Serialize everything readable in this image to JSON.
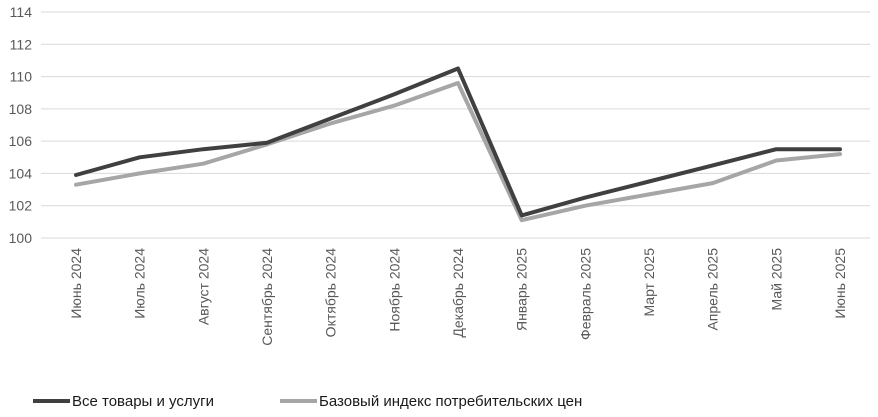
{
  "chart_data": {
    "type": "line",
    "categories": [
      "Июнь 2024",
      "Июль 2024",
      "Август 2024",
      "Сентябрь 2024",
      "Октябрь 2024",
      "Ноябрь 2024",
      "Декабрь 2024",
      "Январь 2025",
      "Февраль 2025",
      "Март 2025",
      "Апрель 2025",
      "Май 2025",
      "Июнь 2025"
    ],
    "series": [
      {
        "name": "Все товары и услуги",
        "color": "#404040",
        "values": [
          103.9,
          105.0,
          105.5,
          105.9,
          107.4,
          108.9,
          110.5,
          101.4,
          102.5,
          103.5,
          104.5,
          105.5,
          105.5
        ]
      },
      {
        "name": "Базовый индекс потребительских цен",
        "color": "#a6a6a6",
        "values": [
          103.3,
          104.0,
          104.6,
          105.8,
          107.1,
          108.2,
          109.6,
          101.1,
          102.0,
          102.7,
          103.4,
          104.8,
          105.2
        ]
      }
    ],
    "yticks": [
      "100",
      "102",
      "104",
      "106",
      "108",
      "110",
      "112",
      "114"
    ],
    "ylim": [
      100,
      114
    ],
    "grid": true,
    "legend_position": "bottom-left",
    "title": "",
    "xlabel": "",
    "ylabel": ""
  }
}
